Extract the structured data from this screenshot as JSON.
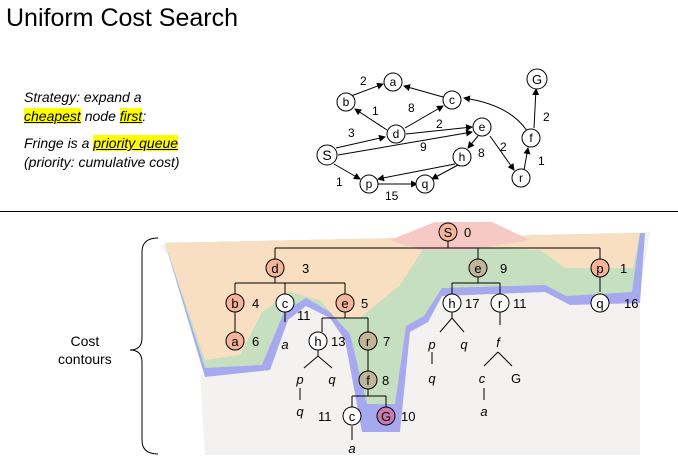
{
  "title": "Uniform Cost Search",
  "strategy": {
    "line1": "Strategy: expand a",
    "cheapest": "cheapest",
    "node": " node ",
    "first": "first",
    "colon": ":",
    "fringe_prefix": "Fringe is a ",
    "priority_queue": "priority queue",
    "priority_note": "(priority: cumulative cost)"
  },
  "contours_label": [
    "Cost",
    "contours"
  ],
  "graph": {
    "nodes": [
      {
        "id": "S",
        "label": "S"
      },
      {
        "id": "a",
        "label": "a"
      },
      {
        "id": "b",
        "label": "b"
      },
      {
        "id": "c",
        "label": "c"
      },
      {
        "id": "d",
        "label": "d"
      },
      {
        "id": "e",
        "label": "e"
      },
      {
        "id": "f",
        "label": "f"
      },
      {
        "id": "G",
        "label": "G"
      },
      {
        "id": "h",
        "label": "h"
      },
      {
        "id": "p",
        "label": "p"
      },
      {
        "id": "q",
        "label": "q"
      },
      {
        "id": "r",
        "label": "r"
      }
    ],
    "edge_costs": [
      "2",
      "1",
      "8",
      "2",
      "3",
      "9",
      "2",
      "8",
      "2",
      "1",
      "1",
      "15"
    ]
  },
  "tree": {
    "nodes": [
      {
        "label": "S",
        "cost": "0"
      },
      {
        "label": "d",
        "cost": "3"
      },
      {
        "label": "e",
        "cost": "9"
      },
      {
        "label": "p",
        "cost": "1"
      },
      {
        "label": "b",
        "cost": "4"
      },
      {
        "label": "c",
        "cost": "11"
      },
      {
        "label": "e",
        "cost": "5"
      },
      {
        "label": "h",
        "cost": "17"
      },
      {
        "label": "r",
        "cost": "11"
      },
      {
        "label": "q",
        "cost": "16"
      },
      {
        "label": "a",
        "cost": "6"
      },
      {
        "label": "h",
        "cost": "13"
      },
      {
        "label": "r",
        "cost": "7"
      },
      {
        "label": "f",
        "cost": "8"
      },
      {
        "label": "c",
        "cost": "11"
      },
      {
        "label": "G",
        "cost": "10"
      }
    ],
    "leaves": [
      "a",
      "p",
      "q",
      "p",
      "q",
      "q",
      "f",
      "q",
      "c",
      "G",
      "q",
      "a",
      "a"
    ]
  },
  "colors": {
    "expanded_fill": "#f2b49a",
    "goal_fill": "#c77bb2",
    "middle_fill": "#c0b59a",
    "contour_pink": "#f6c9c4",
    "contour_orange": "#f9dfc2",
    "contour_green": "#c7dfc1",
    "contour_blue": "#a7a9ee",
    "contour_gray": "#f3f2f0"
  }
}
